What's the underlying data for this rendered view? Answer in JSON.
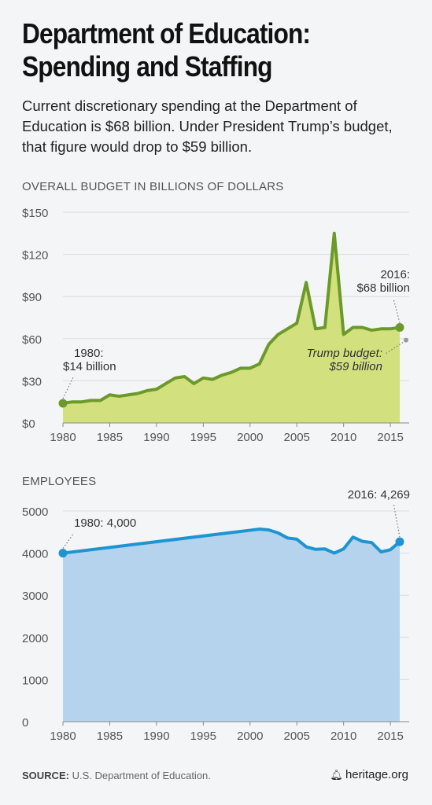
{
  "title_line1": "Department of Education:",
  "title_line2": "Spending and Staffing",
  "subtitle": "Current discretionary spending at the Department of Education is $68 billion. Under President Trump’s budget, that figure would drop to $59 billion.",
  "source_label": "SOURCE:",
  "source_text": "U.S. Department of Education.",
  "brand_icon": "bell-icon",
  "brand": "heritage.org",
  "chart_data": [
    {
      "type": "area",
      "title": "OVERALL BUDGET IN BILLIONS OF DOLLARS",
      "color_line": "#6b9a2a",
      "color_fill": "#d3e07e",
      "ylim": [
        0,
        150
      ],
      "yticks": [
        "$0",
        "$30",
        "$60",
        "$90",
        "$120",
        "$150"
      ],
      "ytick_values": [
        0,
        30,
        60,
        90,
        120,
        150
      ],
      "xticks": [
        "1980",
        "1985",
        "1990",
        "1995",
        "2000",
        "2005",
        "2010",
        "2015"
      ],
      "xtick_values": [
        1980,
        1985,
        1990,
        1995,
        2000,
        2005,
        2010,
        2015
      ],
      "xlim": [
        1980,
        2016
      ],
      "x": [
        1980,
        1981,
        1982,
        1983,
        1984,
        1985,
        1986,
        1987,
        1988,
        1989,
        1990,
        1991,
        1992,
        1993,
        1994,
        1995,
        1996,
        1997,
        1998,
        1999,
        2000,
        2001,
        2002,
        2003,
        2004,
        2005,
        2006,
        2007,
        2008,
        2009,
        2010,
        2011,
        2012,
        2013,
        2014,
        2015,
        2016
      ],
      "values": [
        14,
        15,
        15,
        16,
        16,
        20,
        19,
        20,
        21,
        23,
        24,
        28,
        32,
        33,
        28,
        32,
        31,
        34,
        36,
        39,
        39,
        42,
        56,
        63,
        67,
        71,
        100,
        67,
        68,
        135,
        63,
        68,
        68,
        66,
        67,
        67,
        68
      ],
      "annotations": [
        {
          "label": "1980:",
          "label2": "$14 billion",
          "x": 1980,
          "y": 14
        },
        {
          "label": "2016:",
          "label2": "$68 billion",
          "x": 2016,
          "y": 68
        },
        {
          "label": "Trump budget:",
          "label2": "$59 billion",
          "x": 2017,
          "y": 59
        }
      ]
    },
    {
      "type": "area",
      "title": "EMPLOYEES",
      "color_line": "#1e94d2",
      "color_fill": "#b5d3ec",
      "ylim": [
        0,
        5000
      ],
      "yticks": [
        "0",
        "1000",
        "2000",
        "3000",
        "4000",
        "5000"
      ],
      "ytick_values": [
        0,
        1000,
        2000,
        3000,
        4000,
        5000
      ],
      "xticks": [
        "1980",
        "1985",
        "1990",
        "1995",
        "2000",
        "2005",
        "2010",
        "2015"
      ],
      "xtick_values": [
        1980,
        1985,
        1990,
        1995,
        2000,
        2005,
        2010,
        2015
      ],
      "xlim": [
        1980,
        2016
      ],
      "x": [
        1980,
        2001,
        2002,
        2003,
        2004,
        2005,
        2006,
        2007,
        2008,
        2009,
        2010,
        2011,
        2012,
        2013,
        2014,
        2015,
        2016
      ],
      "values": [
        4000,
        4570,
        4550,
        4480,
        4360,
        4330,
        4150,
        4090,
        4100,
        4000,
        4100,
        4380,
        4280,
        4250,
        4030,
        4080,
        4269
      ],
      "annotations": [
        {
          "label": "1980: 4,000",
          "x": 1980,
          "y": 4000
        },
        {
          "label": "2016: 4,269",
          "x": 2016,
          "y": 4269
        }
      ]
    }
  ]
}
